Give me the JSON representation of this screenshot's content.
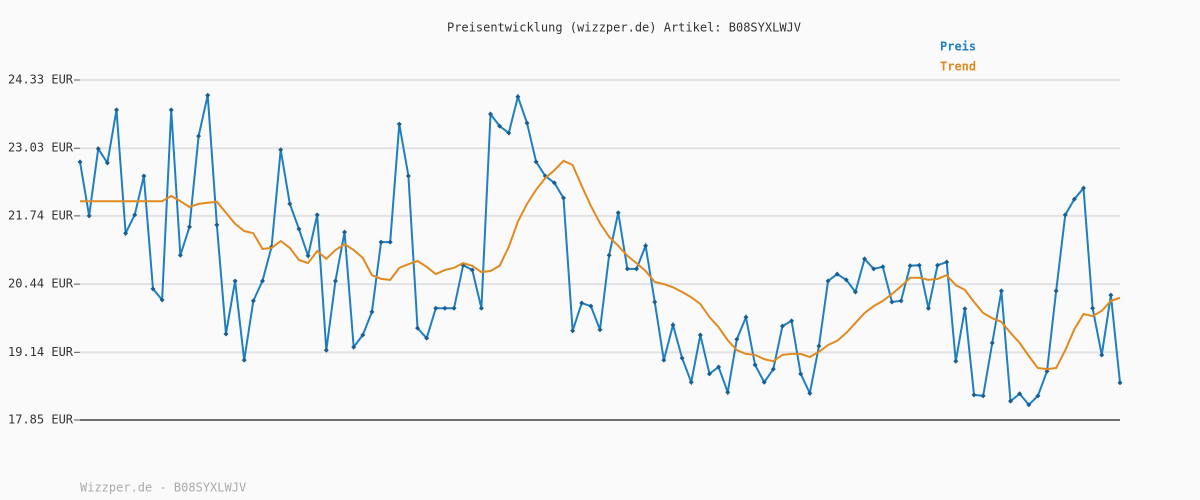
{
  "chart_data": {
    "type": "line",
    "title": "Preisentwicklung (wizzper.de) Artikel: B08SYXLWJV",
    "footer": "Wizzper.de - B08SYXLWJV",
    "grid": true,
    "legend": "top-right",
    "ylim": [
      17.85,
      24.33
    ],
    "yticks": [
      {
        "value": 17.85,
        "label": "17.85 EUR"
      },
      {
        "value": 19.14,
        "label": "19.14 EUR"
      },
      {
        "value": 20.44,
        "label": "20.44 EUR"
      },
      {
        "value": 21.74,
        "label": "21.74 EUR"
      },
      {
        "value": 23.03,
        "label": "23.03 EUR"
      },
      {
        "value": 24.33,
        "label": "24.33 EUR"
      }
    ],
    "categories": [
      null,
      null,
      null,
      null,
      null,
      null,
      null,
      null,
      null,
      null,
      null,
      null,
      null,
      null,
      null,
      null,
      null,
      null,
      null,
      null,
      null,
      null,
      null,
      null,
      null,
      null,
      null,
      null,
      null,
      null,
      null,
      null,
      null,
      null,
      null,
      null,
      null,
      null,
      null,
      null,
      null,
      null,
      null,
      null,
      null,
      null,
      null,
      null,
      null,
      null,
      null,
      null,
      null,
      null,
      null,
      null,
      null,
      null,
      null,
      null,
      null,
      null,
      null,
      null,
      null,
      null,
      null,
      null,
      null,
      null,
      null,
      null,
      null,
      null,
      null,
      null,
      null,
      null,
      null,
      null,
      null,
      null,
      null,
      null,
      null,
      null,
      null,
      null,
      null,
      null,
      null,
      null,
      null,
      null,
      null,
      null,
      null,
      null,
      null,
      null,
      null,
      null,
      null,
      null,
      null,
      null,
      null,
      null,
      null,
      null,
      null,
      null,
      null,
      null,
      null
    ],
    "series": [
      {
        "name": "Preis",
        "color": "#1f7fc0",
        "markers": true,
        "values": [
          22.77,
          21.74,
          23.02,
          22.75,
          23.76,
          21.41,
          21.76,
          22.5,
          20.35,
          20.14,
          23.76,
          20.99,
          21.53,
          23.26,
          24.04,
          21.57,
          19.49,
          20.5,
          18.99,
          20.12,
          20.5,
          21.15,
          23.0,
          21.97,
          21.49,
          20.98,
          21.76,
          19.18,
          20.5,
          21.43,
          19.24,
          19.47,
          19.91,
          21.24,
          21.24,
          23.49,
          22.5,
          19.6,
          19.41,
          19.98,
          19.98,
          19.98,
          20.8,
          20.71,
          19.98,
          23.68,
          23.45,
          23.32,
          24.01,
          23.51,
          22.77,
          22.5,
          22.37,
          22.08,
          19.55,
          20.08,
          20.02,
          19.57,
          20.99,
          21.8,
          20.73,
          20.73,
          21.17,
          20.1,
          18.99,
          19.66,
          19.03,
          18.57,
          19.47,
          18.73,
          18.86,
          18.38,
          19.39,
          19.81,
          18.9,
          18.57,
          18.82,
          19.64,
          19.74,
          18.73,
          18.36,
          19.26,
          20.5,
          20.63,
          20.52,
          20.29,
          20.92,
          20.73,
          20.77,
          20.1,
          20.12,
          20.79,
          20.8,
          19.98,
          20.8,
          20.86,
          18.97,
          19.97,
          18.33,
          18.31,
          19.32,
          20.31,
          18.21,
          18.35,
          18.14,
          18.31,
          18.78,
          20.31,
          21.76,
          22.06,
          22.27,
          19.98,
          19.09,
          20.23,
          18.56
        ]
      },
      {
        "name": "Trend",
        "color": "#e08a20",
        "markers": false,
        "values": [
          22.02,
          22.02,
          22.02,
          22.02,
          22.02,
          22.02,
          22.02,
          22.02,
          22.02,
          22.02,
          22.12,
          22.02,
          21.91,
          21.97,
          21.99,
          22.01,
          21.8,
          21.59,
          21.45,
          21.41,
          21.11,
          21.13,
          21.26,
          21.13,
          20.9,
          20.84,
          21.07,
          20.92,
          21.09,
          21.2,
          21.09,
          20.94,
          20.61,
          20.54,
          20.52,
          20.75,
          20.82,
          20.88,
          20.77,
          20.63,
          20.71,
          20.75,
          20.84,
          20.79,
          20.67,
          20.69,
          20.79,
          21.15,
          21.63,
          21.97,
          22.24,
          22.46,
          22.61,
          22.79,
          22.71,
          22.31,
          21.93,
          21.6,
          21.34,
          21.17,
          20.98,
          20.84,
          20.69,
          20.48,
          20.44,
          20.38,
          20.29,
          20.19,
          20.06,
          19.81,
          19.62,
          19.37,
          19.18,
          19.11,
          19.09,
          19.01,
          18.97,
          19.09,
          19.11,
          19.11,
          19.05,
          19.15,
          19.28,
          19.36,
          19.51,
          19.7,
          19.89,
          20.02,
          20.12,
          20.25,
          20.4,
          20.56,
          20.56,
          20.52,
          20.54,
          20.61,
          20.42,
          20.33,
          20.1,
          19.89,
          19.79,
          19.72,
          19.51,
          19.32,
          19.07,
          18.84,
          18.82,
          18.84,
          19.18,
          19.58,
          19.87,
          19.83,
          19.93,
          20.12,
          20.18
        ]
      }
    ]
  }
}
